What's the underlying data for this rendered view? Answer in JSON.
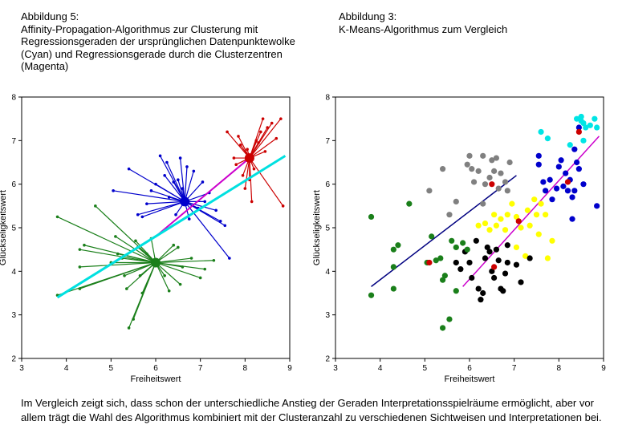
{
  "captions": {
    "left": [
      "Abbildung 5:",
      "Affinity-Propagation-Algorithmus zur Clusterung mit",
      "Regressionsgeraden der ursprünglichen Datenpunktewolke",
      "(Cyan) und Regressionsgerade durch die Clusterzentren",
      "(Magenta)"
    ],
    "right": [
      "Abbildung 3:",
      "K-Means-Algorithmus zum Vergleich"
    ]
  },
  "footer": [
    "Im Vergleich zeigt sich, dass schon der unterschiedliche Anstieg der Geraden Interpretationsspielräume ermöglicht, aber vor",
    "allem trägt die Wahl des Algorithmus kombiniert mit der Clusteranzahl zu verschiedenen Sichtweisen und Interpretationen bei."
  ],
  "chart_data": [
    {
      "type": "scatter",
      "variant": "affinity-propagation-star",
      "xlabel": "Freiheitswert",
      "ylabel": "Glückseligkeitswert",
      "xlim": [
        3,
        9
      ],
      "ylim": [
        2,
        8
      ],
      "xticks": [
        "3",
        "4",
        "5",
        "6",
        "7",
        "8",
        "9"
      ],
      "yticks": [
        "2",
        "3",
        "4",
        "5",
        "6",
        "7",
        "8"
      ],
      "grid": false,
      "clusters": [
        {
          "color": "#1a7f1a",
          "center": [
            6.0,
            4.2
          ],
          "points": [
            [
              3.8,
              5.25
            ],
            [
              3.8,
              3.45
            ],
            [
              4.3,
              4.5
            ],
            [
              4.3,
              4.1
            ],
            [
              4.3,
              3.6
            ],
            [
              4.4,
              4.6
            ],
            [
              4.65,
              5.5
            ],
            [
              5.0,
              4.2
            ],
            [
              5.1,
              4.8
            ],
            [
              5.15,
              4.4
            ],
            [
              5.25,
              4.3
            ],
            [
              5.3,
              3.9
            ],
            [
              5.35,
              3.6
            ],
            [
              5.4,
              2.7
            ],
            [
              5.5,
              2.9
            ],
            [
              5.55,
              4.7
            ],
            [
              5.6,
              4.55
            ],
            [
              5.65,
              3.9
            ],
            [
              5.7,
              3.5
            ],
            [
              5.8,
              4.4
            ],
            [
              5.9,
              4.75
            ],
            [
              6.2,
              3.9
            ],
            [
              6.3,
              3.55
            ],
            [
              6.4,
              4.6
            ],
            [
              6.5,
              4.55
            ],
            [
              6.55,
              3.7
            ],
            [
              6.6,
              4.1
            ],
            [
              6.8,
              4.3
            ],
            [
              7.0,
              3.85
            ],
            [
              7.1,
              4.05
            ],
            [
              7.3,
              4.25
            ]
          ]
        },
        {
          "color": "#0000cc",
          "center": [
            6.65,
            5.6
          ],
          "points": [
            [
              5.05,
              5.85
            ],
            [
              5.4,
              6.35
            ],
            [
              5.6,
              5.3
            ],
            [
              5.7,
              5.25
            ],
            [
              5.8,
              5.55
            ],
            [
              5.9,
              5.85
            ],
            [
              6.0,
              6.0
            ],
            [
              6.1,
              6.65
            ],
            [
              6.2,
              6.2
            ],
            [
              6.25,
              6.5
            ],
            [
              6.3,
              5.7
            ],
            [
              6.4,
              6.05
            ],
            [
              6.45,
              5.3
            ],
            [
              6.5,
              6.1
            ],
            [
              6.55,
              6.6
            ],
            [
              6.6,
              5.9
            ],
            [
              6.7,
              6.4
            ],
            [
              6.75,
              5.2
            ],
            [
              6.85,
              6.3
            ],
            [
              6.95,
              5.45
            ],
            [
              7.05,
              6.05
            ],
            [
              7.1,
              5.6
            ],
            [
              7.2,
              5.8
            ],
            [
              7.35,
              5.4
            ],
            [
              7.45,
              5.15
            ],
            [
              7.55,
              5.05
            ],
            [
              7.65,
              4.3
            ]
          ]
        },
        {
          "color": "#cc0000",
          "center": [
            8.1,
            6.6
          ],
          "points": [
            [
              7.6,
              7.2
            ],
            [
              7.75,
              6.6
            ],
            [
              7.8,
              6.45
            ],
            [
              7.85,
              7.1
            ],
            [
              7.9,
              6.9
            ],
            [
              7.95,
              6.2
            ],
            [
              8.0,
              5.9
            ],
            [
              8.05,
              6.8
            ],
            [
              8.1,
              6.1
            ],
            [
              8.15,
              5.6
            ],
            [
              8.2,
              6.35
            ],
            [
              8.25,
              7.0
            ],
            [
              8.3,
              6.95
            ],
            [
              8.35,
              7.2
            ],
            [
              8.4,
              7.5
            ],
            [
              8.45,
              6.75
            ],
            [
              8.5,
              7.3
            ],
            [
              8.6,
              7.4
            ],
            [
              8.7,
              7.05
            ],
            [
              8.8,
              7.5
            ],
            [
              8.85,
              5.5
            ]
          ]
        }
      ],
      "regression_lines": [
        {
          "color": "#00e0e0",
          "role": "Regressionsgerade der ursprünglichen Datenpunktewolke",
          "from": [
            3.8,
            3.4
          ],
          "to": [
            8.9,
            6.65
          ]
        },
        {
          "color": "#cc00cc",
          "role": "Regressionsgerade durch die Clusterzentren",
          "from": [
            6.0,
            4.8
          ],
          "to": [
            8.1,
            6.6
          ]
        }
      ]
    },
    {
      "type": "scatter",
      "variant": "k-means",
      "xlabel": "Freiheitswert",
      "ylabel": "Glückseligkeitswert",
      "xlim": [
        3,
        9
      ],
      "ylim": [
        2,
        8
      ],
      "xticks": [
        "3",
        "4",
        "5",
        "6",
        "7",
        "8",
        "9"
      ],
      "yticks": [
        "2",
        "3",
        "4",
        "5",
        "6",
        "7",
        "8"
      ],
      "grid": false,
      "series": [
        {
          "color": "#808080",
          "points": [
            [
              5.1,
              5.85
            ],
            [
              5.4,
              6.35
            ],
            [
              5.55,
              5.3
            ],
            [
              5.7,
              5.6
            ],
            [
              5.95,
              6.45
            ],
            [
              6.0,
              6.65
            ],
            [
              6.05,
              6.35
            ],
            [
              6.1,
              6.05
            ],
            [
              6.2,
              6.3
            ],
            [
              6.3,
              6.65
            ],
            [
              6.35,
              6.0
            ],
            [
              6.45,
              6.15
            ],
            [
              6.5,
              6.55
            ],
            [
              6.55,
              6.3
            ],
            [
              6.6,
              6.6
            ],
            [
              6.65,
              5.9
            ],
            [
              6.7,
              6.25
            ],
            [
              6.8,
              6.05
            ],
            [
              6.85,
              5.85
            ],
            [
              6.9,
              6.5
            ],
            [
              6.3,
              5.55
            ]
          ]
        },
        {
          "color": "#ffff00",
          "points": [
            [
              6.2,
              5.05
            ],
            [
              6.35,
              5.1
            ],
            [
              6.45,
              4.95
            ],
            [
              6.55,
              5.3
            ],
            [
              6.6,
              5.05
            ],
            [
              6.7,
              5.2
            ],
            [
              6.8,
              4.95
            ],
            [
              6.85,
              5.3
            ],
            [
              6.95,
              5.55
            ],
            [
              7.05,
              5.25
            ],
            [
              7.15,
              5.0
            ],
            [
              7.3,
              5.4
            ],
            [
              7.45,
              5.65
            ],
            [
              7.5,
              5.3
            ],
            [
              7.55,
              4.85
            ],
            [
              7.7,
              5.3
            ],
            [
              7.85,
              4.7
            ],
            [
              7.75,
              4.3
            ],
            [
              7.25,
              4.35
            ],
            [
              7.05,
              4.55
            ],
            [
              7.35,
              5.05
            ],
            [
              7.6,
              5.55
            ]
          ]
        },
        {
          "color": "#000000",
          "points": [
            [
              5.7,
              4.2
            ],
            [
              5.8,
              4.05
            ],
            [
              5.9,
              4.45
            ],
            [
              6.0,
              4.2
            ],
            [
              6.05,
              3.85
            ],
            [
              6.15,
              4.7
            ],
            [
              6.2,
              3.6
            ],
            [
              6.25,
              3.35
            ],
            [
              6.3,
              3.5
            ],
            [
              6.35,
              4.3
            ],
            [
              6.4,
              4.55
            ],
            [
              6.5,
              4.0
            ],
            [
              6.55,
              3.85
            ],
            [
              6.6,
              4.5
            ],
            [
              6.65,
              4.25
            ],
            [
              6.7,
              3.6
            ],
            [
              6.75,
              3.55
            ],
            [
              6.8,
              3.95
            ],
            [
              6.85,
              4.2
            ],
            [
              7.05,
              4.15
            ],
            [
              7.15,
              3.75
            ],
            [
              7.35,
              4.3
            ],
            [
              6.45,
              4.45
            ],
            [
              6.85,
              4.6
            ]
          ]
        },
        {
          "color": "#1a7f1a",
          "points": [
            [
              3.8,
              5.25
            ],
            [
              3.8,
              3.45
            ],
            [
              4.3,
              4.5
            ],
            [
              4.3,
              4.1
            ],
            [
              4.3,
              3.6
            ],
            [
              4.4,
              4.6
            ],
            [
              4.65,
              5.55
            ],
            [
              5.05,
              4.2
            ],
            [
              5.15,
              4.8
            ],
            [
              5.25,
              4.25
            ],
            [
              5.35,
              4.3
            ],
            [
              5.4,
              3.8
            ],
            [
              5.45,
              3.9
            ],
            [
              5.4,
              2.7
            ],
            [
              5.55,
              2.9
            ],
            [
              5.6,
              4.7
            ],
            [
              5.7,
              4.55
            ],
            [
              5.7,
              3.55
            ],
            [
              5.85,
              4.65
            ],
            [
              5.95,
              4.5
            ]
          ]
        },
        {
          "color": "#0000cc",
          "points": [
            [
              7.55,
              6.45
            ],
            [
              7.65,
              6.05
            ],
            [
              7.7,
              5.85
            ],
            [
              7.8,
              6.1
            ],
            [
              7.85,
              5.65
            ],
            [
              7.95,
              5.9
            ],
            [
              8.0,
              6.4
            ],
            [
              8.05,
              6.55
            ],
            [
              8.1,
              5.95
            ],
            [
              8.15,
              6.25
            ],
            [
              8.2,
              5.85
            ],
            [
              8.25,
              6.1
            ],
            [
              8.3,
              5.7
            ],
            [
              8.35,
              5.85
            ],
            [
              8.4,
              6.5
            ],
            [
              8.45,
              6.35
            ],
            [
              8.55,
              6.0
            ],
            [
              8.3,
              5.2
            ],
            [
              8.85,
              5.5
            ],
            [
              7.55,
              6.65
            ],
            [
              8.35,
              6.8
            ],
            [
              8.45,
              7.3
            ]
          ]
        },
        {
          "color": "#00e5e5",
          "points": [
            [
              7.6,
              7.2
            ],
            [
              7.75,
              7.05
            ],
            [
              8.25,
              6.9
            ],
            [
              8.4,
              7.5
            ],
            [
              8.5,
              7.45
            ],
            [
              8.55,
              7.4
            ],
            [
              8.6,
              7.3
            ],
            [
              8.7,
              7.35
            ],
            [
              8.55,
              7.0
            ],
            [
              8.8,
              7.5
            ],
            [
              8.85,
              7.3
            ],
            [
              8.5,
              7.55
            ]
          ]
        }
      ],
      "centroids": [
        [
          6.5,
          6.0
        ],
        [
          7.1,
          5.15
        ],
        [
          6.55,
          4.1
        ],
        [
          5.1,
          4.2
        ],
        [
          8.2,
          6.05
        ],
        [
          8.45,
          7.2
        ]
      ],
      "centroid_color": "#cc0000",
      "regression_lines": [
        {
          "color": "#000080",
          "from": [
            3.8,
            3.65
          ],
          "to": [
            7.05,
            6.2
          ]
        },
        {
          "color": "#cc00cc",
          "from": [
            5.85,
            3.65
          ],
          "to": [
            8.9,
            7.1
          ]
        }
      ]
    }
  ]
}
